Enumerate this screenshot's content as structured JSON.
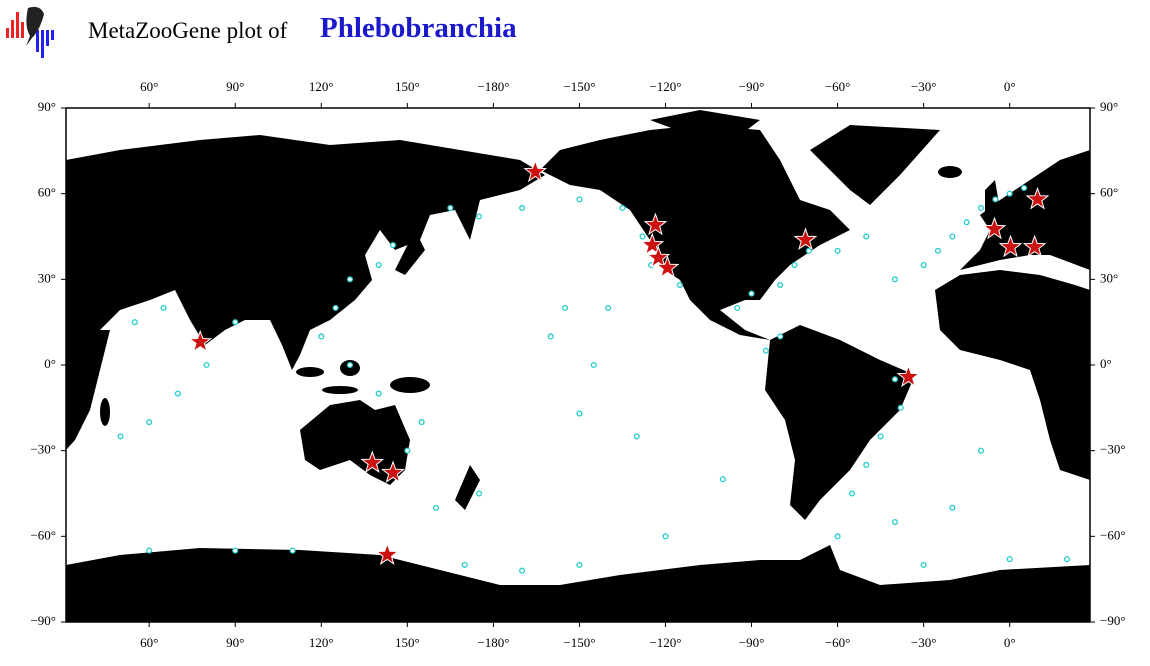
{
  "chart_data": {
    "type": "map",
    "title": "MetaZooGene plot of",
    "subtitle": "Phlebobranchia",
    "xlim": [
      31,
      388
    ],
    "ylim": [
      -90,
      90
    ],
    "xticks": [
      {
        "value": 60,
        "label": "60°"
      },
      {
        "value": 90,
        "label": "90°"
      },
      {
        "value": 120,
        "label": "120°"
      },
      {
        "value": 150,
        "label": "150°"
      },
      {
        "value": -180,
        "label": "−180°"
      },
      {
        "value": -150,
        "label": "−150°"
      },
      {
        "value": -120,
        "label": "−120°"
      },
      {
        "value": -90,
        "label": "−90°"
      },
      {
        "value": -60,
        "label": "−60°"
      },
      {
        "value": -30,
        "label": "−30°"
      },
      {
        "value": 0,
        "label": "0°"
      }
    ],
    "yticks": [
      {
        "value": 90,
        "label": "90°"
      },
      {
        "value": 60,
        "label": "60°"
      },
      {
        "value": 30,
        "label": "30°"
      },
      {
        "value": 0,
        "label": "0°"
      },
      {
        "value": -30,
        "label": "−30°"
      },
      {
        "value": -60,
        "label": "−60°"
      },
      {
        "value": -90,
        "label": "−90°"
      }
    ],
    "series": [
      {
        "marker": "circle",
        "color": "#22cccc",
        "x": [
          -10,
          -5,
          0,
          5,
          -15,
          -20,
          -25,
          -30,
          -40,
          -60,
          -50,
          -70,
          -75,
          -80,
          -90,
          -95,
          -80,
          -85,
          -40,
          -38,
          -45,
          -50,
          -55,
          -60,
          -40,
          -20,
          -10,
          -30,
          0,
          20,
          -120,
          -150,
          -170,
          170,
          160,
          175,
          150,
          155,
          140,
          130,
          120,
          125,
          130,
          140,
          145,
          165,
          175,
          -170,
          -150,
          -135,
          -128,
          -125,
          -115,
          -140,
          -155,
          -160,
          -145,
          -150,
          -130,
          -100,
          90,
          80,
          70,
          60,
          50,
          60,
          90,
          110,
          65,
          55
        ],
        "y": [
          55,
          58,
          60,
          62,
          50,
          45,
          40,
          35,
          30,
          40,
          45,
          40,
          35,
          28,
          25,
          20,
          10,
          5,
          -5,
          -15,
          -25,
          -35,
          -45,
          -60,
          -55,
          -50,
          -30,
          -70,
          -68,
          -68,
          -60,
          -70,
          -72,
          -70,
          -50,
          -45,
          -30,
          -20,
          -10,
          0,
          10,
          20,
          30,
          35,
          42,
          55,
          52,
          55,
          58,
          55,
          45,
          35,
          28,
          20,
          20,
          10,
          0,
          -17,
          -25,
          -40,
          15,
          0,
          -10,
          -20,
          -25,
          -65,
          -65,
          -65,
          20,
          15
        ]
      },
      {
        "marker": "star",
        "color": "#cc1111",
        "x": [
          -165.4,
          -123.5,
          -124.6,
          -122.5,
          -119.3,
          -71.2,
          -35.3,
          -5.3,
          0.3,
          8.7,
          9.7,
          77.8,
          137.8,
          145,
          143
        ],
        "y": [
          67.6,
          49,
          42,
          37.5,
          34,
          43.8,
          -4.2,
          47.6,
          41.3,
          41.3,
          58,
          8,
          -34.3,
          -37.8,
          -66.5
        ]
      }
    ]
  }
}
